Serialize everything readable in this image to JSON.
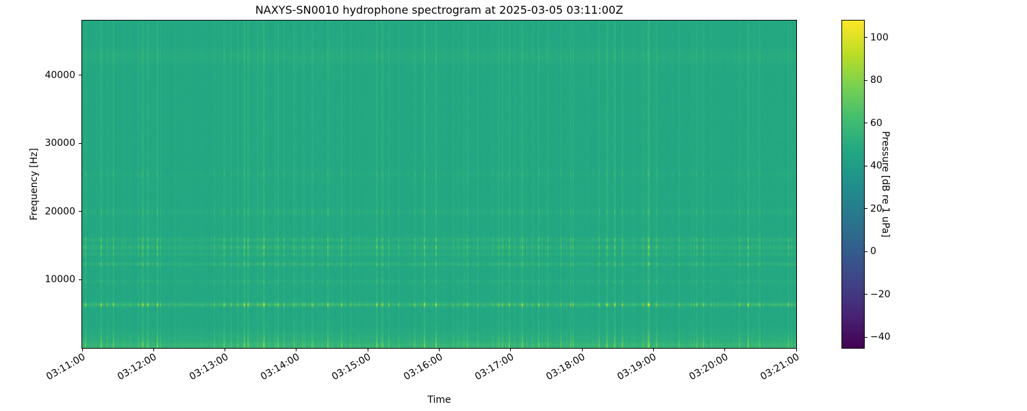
{
  "chart_data": {
    "type": "heatmap",
    "subtype": "spectrogram",
    "title": "NAXYS-SN0010 hydrophone spectrogram at 2025-03-05 03:11:00Z",
    "xlabel": "Time",
    "ylabel": "Frequency [Hz]",
    "x_ticks": [
      "03:11:00",
      "03:12:00",
      "03:13:00",
      "03:14:00",
      "03:15:00",
      "03:16:00",
      "03:17:00",
      "03:18:00",
      "03:19:00",
      "03:20:00",
      "03:21:00"
    ],
    "y_ticks": [
      {
        "value": 10000,
        "label": "10000"
      },
      {
        "value": 20000,
        "label": "20000"
      },
      {
        "value": 30000,
        "label": "30000"
      },
      {
        "value": 40000,
        "label": "40000"
      }
    ],
    "freq_range_hz": [
      0,
      48000
    ],
    "time_span_s": 600,
    "colormap": "viridis",
    "grid": false,
    "legend": "none",
    "colorbar": {
      "label": "Pressure [dB re 1 uPa]",
      "ticks": [
        {
          "value": 100,
          "label": "100"
        },
        {
          "value": 80,
          "label": "80"
        },
        {
          "value": 60,
          "label": "60"
        },
        {
          "value": 40,
          "label": "40"
        },
        {
          "value": 20,
          "label": "20"
        },
        {
          "value": 0,
          "label": "0"
        },
        {
          "value": -20,
          "label": "−20"
        },
        {
          "value": -40,
          "label": "−40"
        }
      ],
      "vmin": -45,
      "vmax": 108
    },
    "background_db": 47,
    "bands": [
      {
        "center_hz": 350,
        "width_hz": 500,
        "base_db": 5.0,
        "streak_gain": 0.35
      },
      {
        "center_hz": 1100,
        "width_hz": 1300,
        "base_db": 3.0,
        "streak_gain": 0.3
      },
      {
        "center_hz": 6400,
        "width_hz": 270,
        "base_db": 6.0,
        "streak_gain": 1.15
      },
      {
        "center_hz": 9800,
        "width_hz": 250,
        "base_db": 1.5,
        "streak_gain": 0.25
      },
      {
        "center_hz": 12350,
        "width_hz": 230,
        "base_db": 3.5,
        "streak_gain": 0.55
      },
      {
        "center_hz": 13800,
        "width_hz": 260,
        "base_db": 2.5,
        "streak_gain": 0.45
      },
      {
        "center_hz": 14800,
        "width_hz": 380,
        "base_db": 3.0,
        "streak_gain": 0.6
      },
      {
        "center_hz": 15900,
        "width_hz": 320,
        "base_db": 2.5,
        "streak_gain": 0.5
      },
      {
        "center_hz": 20000,
        "width_hz": 450,
        "base_db": 1.0,
        "streak_gain": 0.25
      },
      {
        "center_hz": 25500,
        "width_hz": 400,
        "base_db": 0.5,
        "streak_gain": 0.2
      },
      {
        "center_hz": 42800,
        "width_hz": 900,
        "base_db": 2.0,
        "streak_gain": 0.1
      }
    ],
    "transients": {
      "description": "broadband vertical click/impulse streaks roughly every few seconds, brightest in the 6 kHz and 12-16 kHz bands",
      "mean_interval_s": 4,
      "amp_db_range": [
        3,
        38
      ],
      "duration_s": [
        0.5,
        2
      ]
    }
  }
}
